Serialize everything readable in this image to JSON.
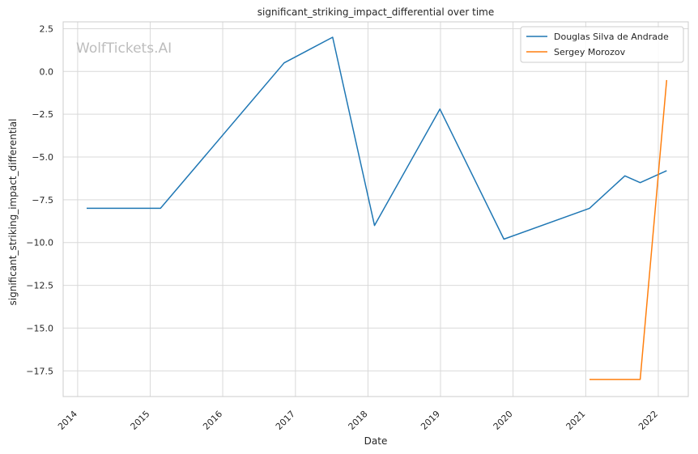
{
  "chart_data": {
    "type": "line",
    "title": "significant_striking_impact_differential over time",
    "xlabel": "Date",
    "ylabel": "significant_striking_impact_differential",
    "watermark": "WolfTickets.AI",
    "xlim": [
      "2013-10-20",
      "2022-06-01"
    ],
    "ylim": [
      -19.0,
      2.9
    ],
    "x_ticks": [
      "2014",
      "2015",
      "2016",
      "2017",
      "2018",
      "2019",
      "2020",
      "2021",
      "2022"
    ],
    "y_ticks": [
      "2.5",
      "0.0",
      "−2.5",
      "−5.0",
      "−7.5",
      "−10.0",
      "−12.5",
      "−15.0",
      "−17.5"
    ],
    "y_tick_values": [
      2.5,
      0.0,
      -2.5,
      -5.0,
      -7.5,
      -10.0,
      -12.5,
      -15.0,
      -17.5
    ],
    "grid": true,
    "legend_position": "top-right",
    "series": [
      {
        "name": "Douglas Silva de Andrade",
        "color": "#1f77b4",
        "points": [
          [
            "2014-02-15",
            -8.0
          ],
          [
            "2015-02-22",
            -8.0
          ],
          [
            "2016-11-05",
            0.5
          ],
          [
            "2017-07-07",
            2.0
          ],
          [
            "2018-02-03",
            -9.0
          ],
          [
            "2018-12-29",
            -2.2
          ],
          [
            "2019-11-16",
            -9.8
          ],
          [
            "2021-01-20",
            -8.0
          ],
          [
            "2021-07-17",
            -6.1
          ],
          [
            "2021-10-02",
            -6.5
          ],
          [
            "2022-02-12",
            -5.8
          ]
        ]
      },
      {
        "name": "Sergey Morozov",
        "color": "#ff7f0e",
        "points": [
          [
            "2021-01-20",
            -18.0
          ],
          [
            "2021-10-02",
            -18.0
          ],
          [
            "2022-02-12",
            -0.5
          ]
        ]
      }
    ]
  }
}
